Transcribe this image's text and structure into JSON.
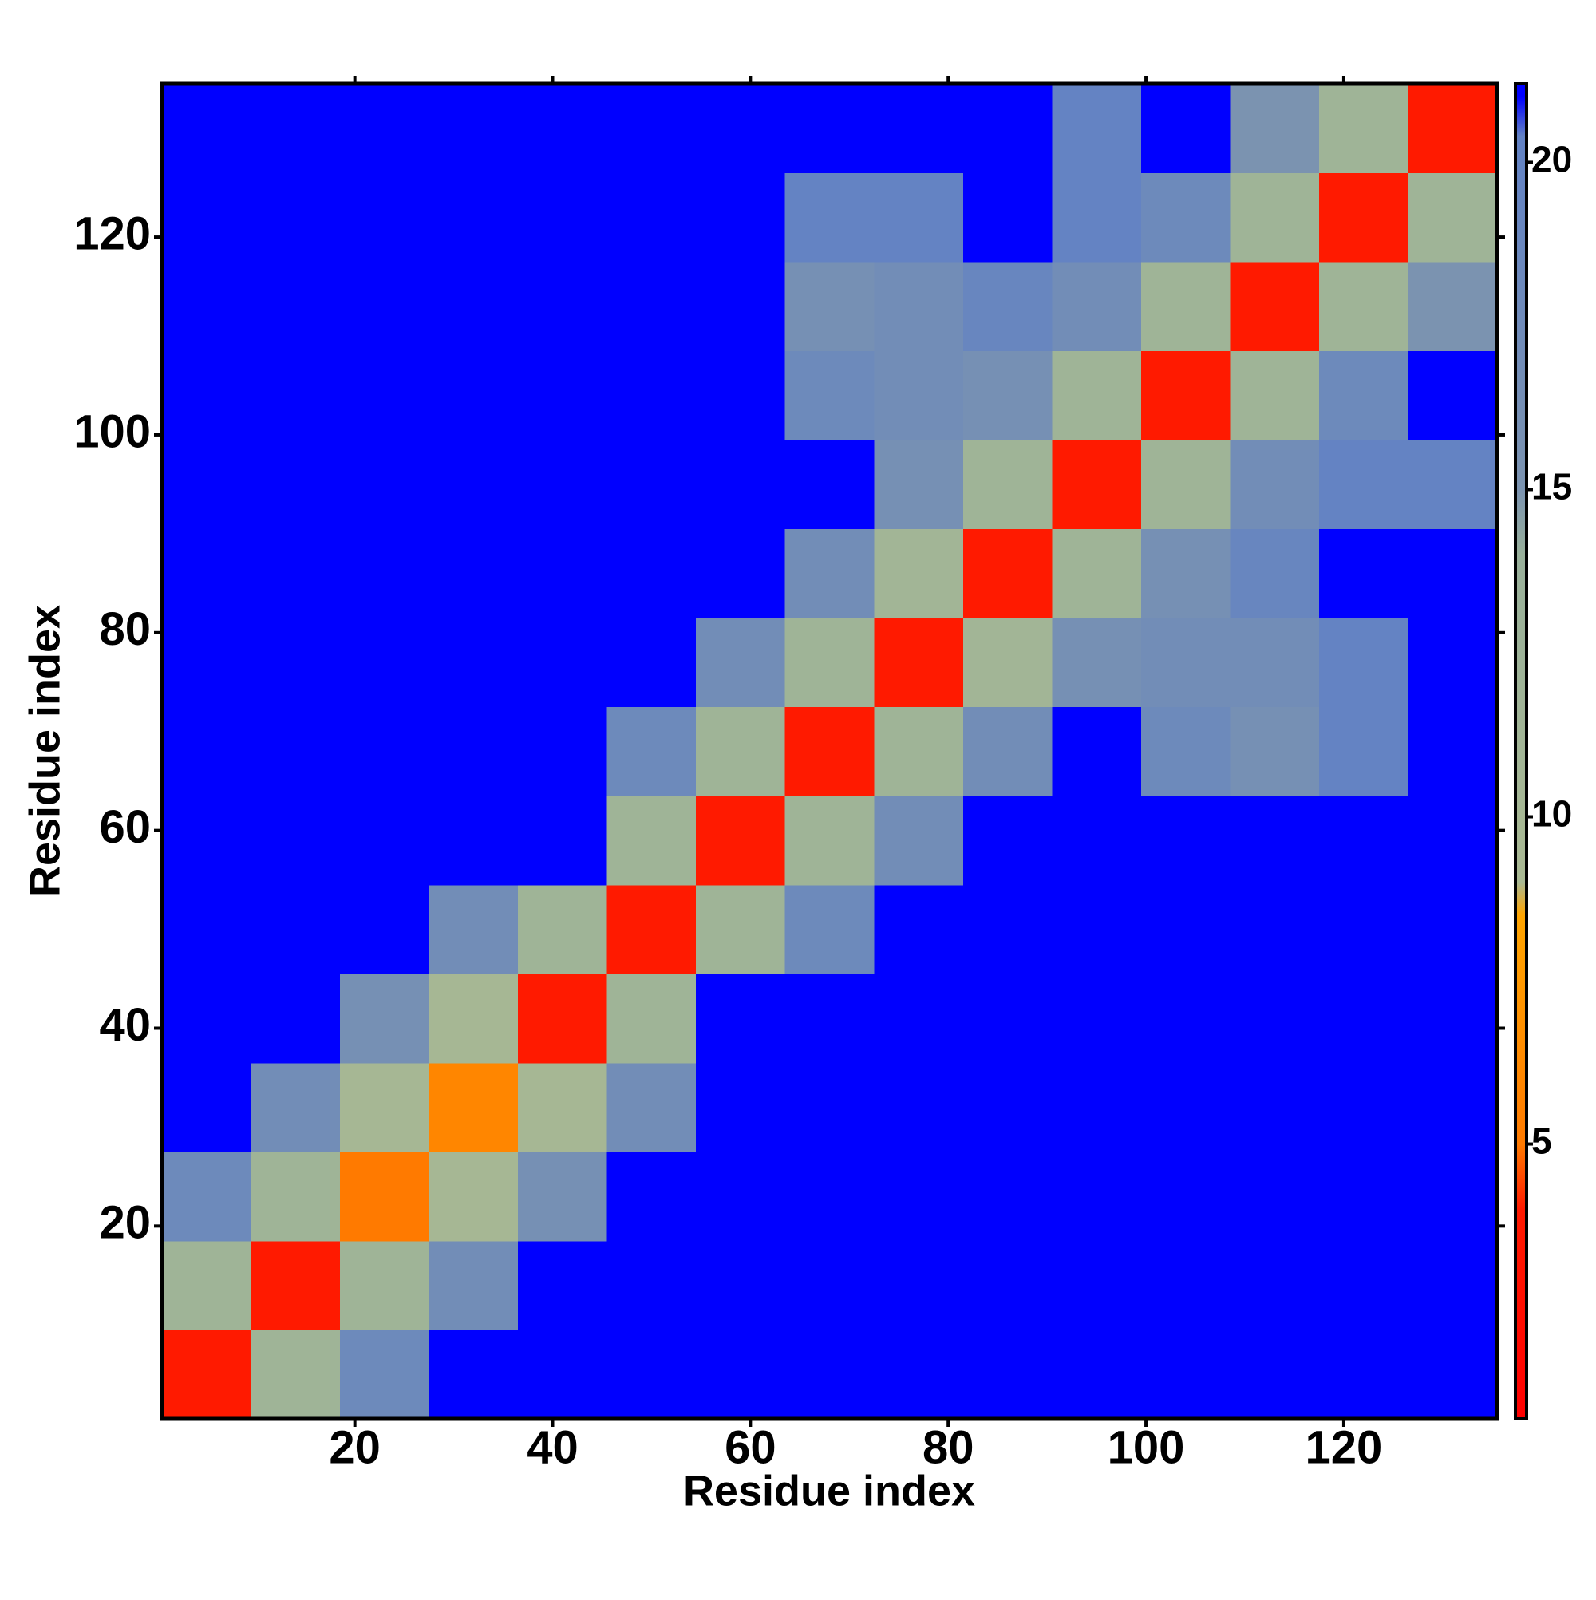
{
  "chart_data": {
    "type": "heatmap",
    "xlabel": "Residue index",
    "ylabel": "Residue index",
    "xbins": [
      0.5,
      9.5,
      18.5,
      27.5,
      36.5,
      45.5,
      54.5,
      63.5,
      72.5,
      81.5,
      90.5,
      99.5,
      108.5,
      117.5,
      126.5,
      135.5
    ],
    "ybins": [
      0.5,
      9.5,
      18.5,
      27.5,
      36.5,
      45.5,
      54.5,
      63.5,
      72.5,
      81.5,
      90.5,
      99.5,
      108.5,
      117.5,
      126.5,
      135.5
    ],
    "xlim": [
      0.5,
      135.5
    ],
    "ylim": [
      0.5,
      135.5
    ],
    "xticks": [
      20,
      40,
      60,
      80,
      100,
      120
    ],
    "yticks": [
      20,
      40,
      60,
      80,
      100,
      120
    ],
    "values": [
      [
        4,
        12,
        18,
        21,
        21,
        21,
        21,
        21,
        21,
        21,
        21,
        21,
        21,
        21,
        21
      ],
      [
        12,
        4,
        12,
        17,
        21,
        21,
        21,
        21,
        21,
        21,
        21,
        21,
        21,
        21,
        21
      ],
      [
        18,
        12,
        5,
        10,
        16,
        21,
        21,
        21,
        21,
        21,
        21,
        21,
        21,
        21,
        21
      ],
      [
        21,
        17,
        10,
        6,
        10,
        17,
        21,
        21,
        21,
        21,
        21,
        21,
        21,
        21,
        21
      ],
      [
        21,
        21,
        16,
        10,
        4,
        12,
        21,
        21,
        21,
        21,
        21,
        21,
        21,
        21,
        21
      ],
      [
        21,
        21,
        21,
        17,
        12,
        4,
        12,
        18,
        21,
        21,
        21,
        21,
        21,
        21,
        21
      ],
      [
        21,
        21,
        21,
        21,
        21,
        12,
        4,
        12,
        17,
        21,
        21,
        21,
        21,
        21,
        21
      ],
      [
        21,
        21,
        21,
        21,
        21,
        18,
        12,
        4,
        12,
        17,
        21,
        18,
        16,
        20,
        21
      ],
      [
        21,
        21,
        21,
        21,
        21,
        21,
        17,
        12,
        4,
        11,
        16,
        17,
        17,
        20,
        21
      ],
      [
        21,
        21,
        21,
        21,
        21,
        21,
        21,
        17,
        11,
        4,
        12,
        16,
        19,
        21,
        21
      ],
      [
        21,
        21,
        21,
        21,
        21,
        21,
        21,
        21,
        16,
        12,
        4,
        12,
        17,
        20,
        20
      ],
      [
        21,
        21,
        21,
        21,
        21,
        21,
        21,
        18,
        17,
        16,
        12,
        4,
        12,
        18,
        21
      ],
      [
        21,
        21,
        21,
        21,
        21,
        21,
        21,
        16,
        17,
        19,
        17,
        12,
        4,
        12,
        15
      ],
      [
        21,
        21,
        21,
        21,
        21,
        21,
        21,
        20,
        20,
        21,
        20,
        18,
        12,
        4,
        12
      ],
      [
        21,
        21,
        21,
        21,
        21,
        21,
        21,
        21,
        21,
        21,
        20,
        21,
        15,
        12,
        4
      ]
    ],
    "colorbar": {
      "lim": [
        0.8,
        21.2
      ],
      "ticks": [
        5,
        10,
        15,
        20
      ],
      "colorscale": [
        [
          0.8,
          "#ff0000"
        ],
        [
          4,
          "#ff1a00"
        ],
        [
          5,
          "#ff7a00"
        ],
        [
          8.5,
          "#ffa500"
        ],
        [
          9,
          "#a9b993"
        ],
        [
          14,
          "#98b09a"
        ],
        [
          15,
          "#7b93b0"
        ],
        [
          20.4,
          "#6282c4"
        ],
        [
          21,
          "#0000ff"
        ]
      ]
    }
  }
}
